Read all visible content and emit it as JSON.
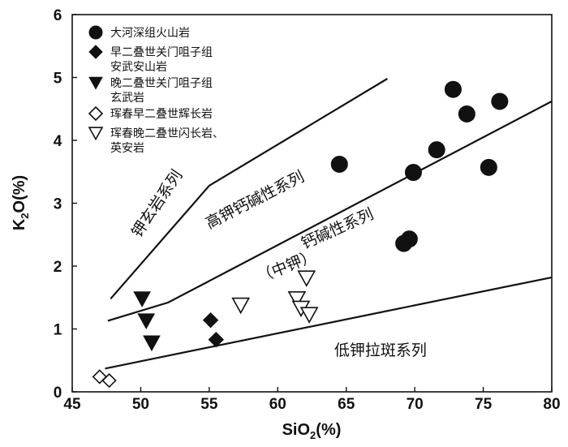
{
  "chart_data": {
    "type": "scatter",
    "title": "",
    "xlabel_main": "SiO",
    "xlabel_sub": "2",
    "xlabel_unit": "(%)",
    "ylabel_main": "K",
    "ylabel_sub": "2",
    "ylabel_unit": "O(%)",
    "xlim": [
      45,
      80
    ],
    "ylim": [
      0,
      6
    ],
    "x_ticks": [
      45,
      50,
      55,
      60,
      65,
      70,
      75,
      80
    ],
    "y_ticks": [
      0,
      1,
      2,
      3,
      4,
      5,
      6
    ],
    "grid": false,
    "legend_position": "top-left",
    "series": [
      {
        "name_lines": [
          "大河深组火山岩"
        ],
        "marker": "circle",
        "filled": true,
        "points": [
          {
            "x": 64.5,
            "y": 3.62
          },
          {
            "x": 69.2,
            "y": 2.36
          },
          {
            "x": 69.6,
            "y": 2.43
          },
          {
            "x": 69.9,
            "y": 3.49
          },
          {
            "x": 71.6,
            "y": 3.85
          },
          {
            "x": 72.8,
            "y": 4.81
          },
          {
            "x": 73.8,
            "y": 4.42
          },
          {
            "x": 75.4,
            "y": 3.57
          },
          {
            "x": 76.2,
            "y": 4.62
          }
        ]
      },
      {
        "name_lines": [
          "早二叠世关门咀子组",
          "安武安山岩"
        ],
        "marker": "diamond",
        "filled": true,
        "points": [
          {
            "x": 55.1,
            "y": 1.14
          },
          {
            "x": 55.5,
            "y": 0.83
          }
        ]
      },
      {
        "name_lines": [
          "晚二叠世关门咀子组",
          "玄武岩"
        ],
        "marker": "triangle-down",
        "filled": true,
        "points": [
          {
            "x": 50.1,
            "y": 1.48
          },
          {
            "x": 50.4,
            "y": 1.13
          },
          {
            "x": 50.8,
            "y": 0.78
          }
        ]
      },
      {
        "name_lines": [
          "珲春早二叠世辉长岩"
        ],
        "marker": "diamond",
        "filled": false,
        "points": [
          {
            "x": 47.0,
            "y": 0.24
          },
          {
            "x": 47.7,
            "y": 0.18
          }
        ]
      },
      {
        "name_lines": [
          "珲春晚二叠世闪长岩、",
          "英安岩"
        ],
        "marker": "triangle-down",
        "filled": false,
        "points": [
          {
            "x": 57.3,
            "y": 1.38
          },
          {
            "x": 61.4,
            "y": 1.48
          },
          {
            "x": 61.7,
            "y": 1.33
          },
          {
            "x": 62.1,
            "y": 1.81
          },
          {
            "x": 62.3,
            "y": 1.23
          }
        ]
      }
    ],
    "boundaries": [
      {
        "points": [
          [
            47.8,
            1.48
          ],
          [
            55.0,
            3.28
          ],
          [
            68.0,
            4.98
          ]
        ]
      },
      {
        "points": [
          [
            47.6,
            1.13
          ],
          [
            52.0,
            1.42
          ],
          [
            80.0,
            4.62
          ]
        ]
      },
      {
        "points": [
          [
            47.4,
            0.37
          ],
          [
            80.0,
            1.82
          ]
        ]
      }
    ],
    "field_labels": [
      {
        "text": "钾玄岩系列",
        "x": 51.5,
        "y": 2.95,
        "angle": -56
      },
      {
        "text": "高钾钙碱性系列",
        "x": 58.5,
        "y": 2.98,
        "angle": -27
      },
      {
        "text": "钙碱性系列",
        "x": 64.5,
        "y": 2.52,
        "angle": -24
      },
      {
        "text": "（中钾）",
        "x": 60.8,
        "y": 1.92,
        "angle": -22
      },
      {
        "text": "低钾拉斑系列",
        "x": 67.5,
        "y": 0.58,
        "angle": 0
      }
    ]
  }
}
